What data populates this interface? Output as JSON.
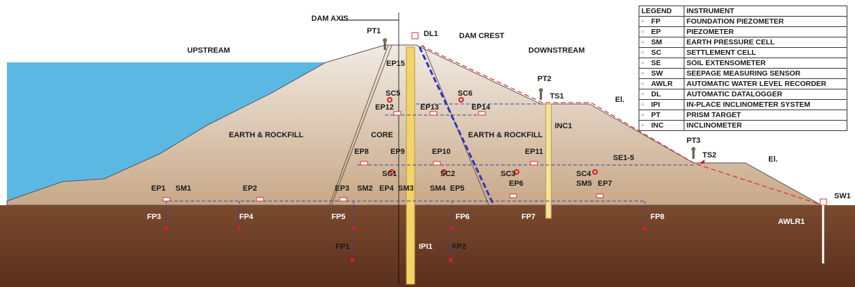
{
  "legend": {
    "header": [
      "LEGEND",
      "INSTRUMENT"
    ],
    "rows": [
      [
        "FP",
        "FOUNDATION PIEZOMETER"
      ],
      [
        "EP",
        "PIEZOMETER"
      ],
      [
        "SM",
        "EARTH PRESSURE CELL"
      ],
      [
        "SC",
        "SETTLEMENT CELL"
      ],
      [
        "SE",
        "SOIL EXTENSOMETER"
      ],
      [
        "SW",
        "SEEPAGE MEASURING SENSOR"
      ],
      [
        "AWLR",
        "AUTOMATIC WATER LEVEL RECORDER"
      ],
      [
        "DL",
        "AUTOMATIC DATALOGGER"
      ],
      [
        "IPI",
        "IN-PLACE INCLINOMETER SYSTEM"
      ],
      [
        "PT",
        "PRISM TARGET"
      ],
      [
        "INC",
        "INCLINOMETER"
      ]
    ]
  },
  "labels": [
    "DAM AXIS",
    "PT1",
    "DL1",
    "DAM CREST",
    "UPSTREAM",
    "DOWNSTREAM",
    "EP15",
    "SC5",
    "SC6",
    "PT2",
    "TS1",
    "El.",
    "EP12",
    "EP13",
    "EP14",
    "INC1",
    "EARTH & ROCKFILL",
    "CORE",
    "EARTH & ROCKFILL",
    "EP8",
    "EP9",
    "EP10",
    "EP11",
    "PT3",
    "TS2",
    "SE1-5",
    "El.",
    "SC1",
    "SC2",
    "SC3",
    "SC4",
    "EP6",
    "SM5",
    "EP7",
    "EP1",
    "SM1",
    "EP2",
    "EP3",
    "SM2",
    "EP4",
    "SM3",
    "SM4",
    "EP5",
    "FP3",
    "FP4",
    "FP5",
    "FP6",
    "FP7",
    "FP8",
    "SW1",
    "AWLR1",
    "FP1",
    "IPI1",
    "FP2"
  ]
}
